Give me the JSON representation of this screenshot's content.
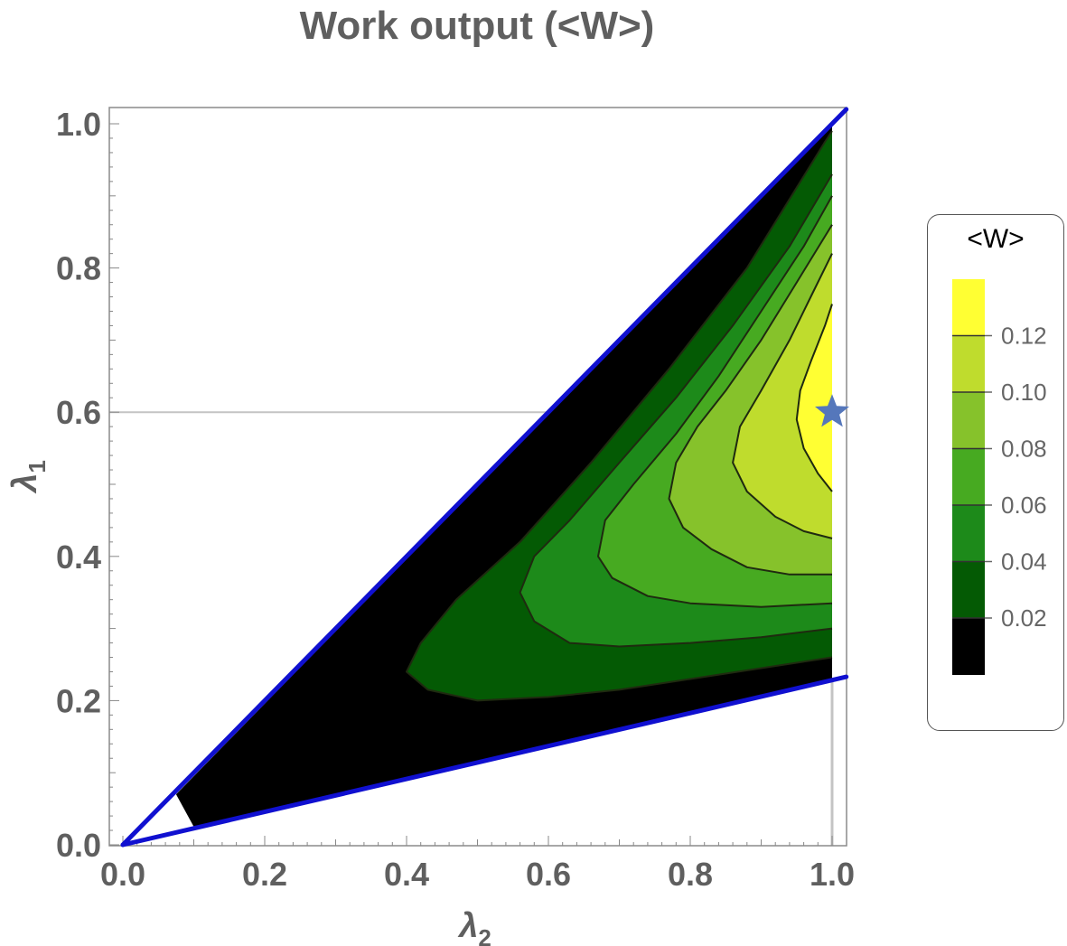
{
  "chart_data": {
    "type": "contour",
    "title": "Work output (<W>)",
    "xlabel": "λ",
    "xlabel_sub": "2",
    "ylabel": "λ",
    "ylabel_sub": "1",
    "xlim": [
      0.0,
      1.0
    ],
    "ylim": [
      0.0,
      1.0
    ],
    "x_ticks": [
      "0.0",
      "0.2",
      "0.4",
      "0.6",
      "0.8",
      "1.0"
    ],
    "y_ticks": [
      "0.0",
      "0.2",
      "0.4",
      "0.6",
      "0.8",
      "1.0"
    ],
    "legend": {
      "title": "<W>",
      "placement": "right",
      "levels": [
        "0.02",
        "0.04",
        "0.06",
        "0.08",
        "0.10",
        "0.12"
      ],
      "band_colors": [
        "#000000",
        "#045a04",
        "#1d8a1a",
        "#47aa21",
        "#86c22b",
        "#bfdc2d",
        "#ffff33"
      ]
    },
    "boundaries": [
      {
        "name": "upper",
        "color": "#1010d0",
        "points": [
          [
            0.0,
            0.0
          ],
          [
            1.02,
            1.02
          ]
        ]
      },
      {
        "name": "lower",
        "color": "#1010d0",
        "points": [
          [
            0.0,
            0.0
          ],
          [
            1.02,
            0.233
          ]
        ]
      }
    ],
    "marker": {
      "shape": "star",
      "x": 1.0,
      "y": 0.6,
      "color": "#5577bb"
    },
    "guide_lines": [
      {
        "orientation": "horizontal",
        "y": 0.6
      },
      {
        "orientation": "vertical",
        "x": 1.0
      }
    ],
    "contours": [
      {
        "level": 0.02,
        "points": [
          [
            0.4,
            0.24
          ],
          [
            0.42,
            0.28
          ],
          [
            0.47,
            0.34
          ],
          [
            0.56,
            0.42
          ],
          [
            0.66,
            0.53
          ],
          [
            0.77,
            0.66
          ],
          [
            0.88,
            0.8
          ],
          [
            0.99,
            0.975
          ],
          [
            1.0,
            0.99
          ]
        ],
        "lower_points": [
          [
            0.4,
            0.24
          ],
          [
            0.43,
            0.215
          ],
          [
            0.5,
            0.2
          ],
          [
            0.6,
            0.205
          ],
          [
            0.7,
            0.215
          ],
          [
            0.8,
            0.23
          ],
          [
            0.9,
            0.245
          ],
          [
            1.0,
            0.26
          ]
        ]
      },
      {
        "level": 0.04,
        "points": [
          [
            0.56,
            0.35
          ],
          [
            0.58,
            0.4
          ],
          [
            0.63,
            0.45
          ],
          [
            0.7,
            0.53
          ],
          [
            0.78,
            0.62
          ],
          [
            0.86,
            0.72
          ],
          [
            0.94,
            0.83
          ],
          [
            1.0,
            0.93
          ]
        ],
        "lower_points": [
          [
            0.56,
            0.35
          ],
          [
            0.58,
            0.31
          ],
          [
            0.63,
            0.28
          ],
          [
            0.7,
            0.275
          ],
          [
            0.8,
            0.28
          ],
          [
            0.9,
            0.288
          ],
          [
            1.0,
            0.3
          ]
        ]
      },
      {
        "level": 0.06,
        "points": [
          [
            0.67,
            0.4
          ],
          [
            0.68,
            0.45
          ],
          [
            0.72,
            0.5
          ],
          [
            0.78,
            0.57
          ],
          [
            0.84,
            0.65
          ],
          [
            0.9,
            0.74
          ],
          [
            0.96,
            0.83
          ],
          [
            1.0,
            0.9
          ]
        ],
        "lower_points": [
          [
            0.67,
            0.4
          ],
          [
            0.69,
            0.37
          ],
          [
            0.74,
            0.345
          ],
          [
            0.8,
            0.335
          ],
          [
            0.9,
            0.33
          ],
          [
            1.0,
            0.335
          ]
        ]
      },
      {
        "level": 0.08,
        "points": [
          [
            0.77,
            0.48
          ],
          [
            0.78,
            0.53
          ],
          [
            0.81,
            0.58
          ],
          [
            0.85,
            0.63
          ],
          [
            0.9,
            0.7
          ],
          [
            0.95,
            0.78
          ],
          [
            1.0,
            0.86
          ]
        ],
        "lower_points": [
          [
            0.77,
            0.48
          ],
          [
            0.79,
            0.44
          ],
          [
            0.83,
            0.41
          ],
          [
            0.88,
            0.385
          ],
          [
            0.94,
            0.375
          ],
          [
            1.0,
            0.375
          ]
        ]
      },
      {
        "level": 0.1,
        "points": [
          [
            0.86,
            0.53
          ],
          [
            0.87,
            0.58
          ],
          [
            0.9,
            0.63
          ],
          [
            0.94,
            0.7
          ],
          [
            0.97,
            0.76
          ],
          [
            1.0,
            0.82
          ]
        ],
        "lower_points": [
          [
            0.86,
            0.53
          ],
          [
            0.88,
            0.49
          ],
          [
            0.92,
            0.455
          ],
          [
            0.96,
            0.435
          ],
          [
            1.0,
            0.425
          ]
        ]
      },
      {
        "level": 0.12,
        "points": [
          [
            0.95,
            0.59
          ],
          [
            0.955,
            0.63
          ],
          [
            0.97,
            0.67
          ],
          [
            0.99,
            0.72
          ],
          [
            1.0,
            0.75
          ]
        ],
        "lower_points": [
          [
            0.95,
            0.59
          ],
          [
            0.96,
            0.55
          ],
          [
            0.98,
            0.515
          ],
          [
            1.0,
            0.49
          ]
        ]
      }
    ]
  }
}
